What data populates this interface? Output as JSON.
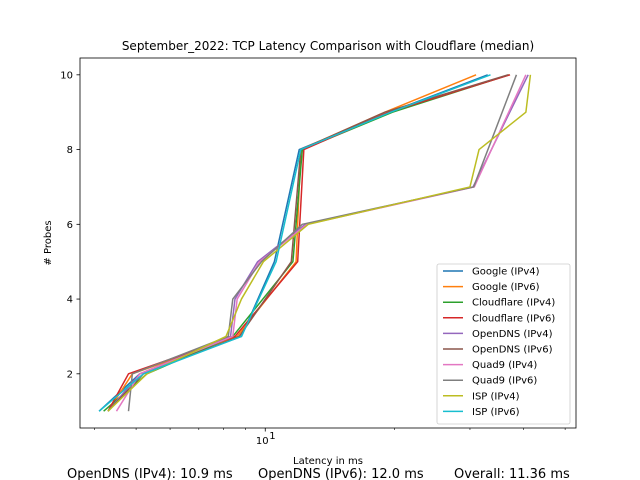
{
  "chart_data": {
    "type": "line",
    "title": "September_2022: TCP Latency Comparison with Cloudflare (median)",
    "xlabel": "Latency in ms",
    "ylabel": "# Probes",
    "xscale": "log",
    "xlim": [
      3.7,
      53
    ],
    "ylim": [
      0.55,
      10.45
    ],
    "xticks": [
      {
        "value": 10,
        "label": "10",
        "exp": "1"
      }
    ],
    "yticks": [
      2,
      4,
      6,
      8,
      10
    ],
    "grid": false,
    "legend_position": "lower-right",
    "series": [
      {
        "name": "Google (IPv4)",
        "color": "#1f77b4",
        "x": [
          4.1,
          5.1,
          8.8,
          10.5,
          12.0,
          19.5,
          33.0
        ],
        "y": [
          1,
          2,
          3,
          5,
          8,
          9,
          10
        ]
      },
      {
        "name": "Google (IPv6)",
        "color": "#ff7f0e",
        "x": [
          4.3,
          4.9,
          8.6,
          11.8,
          12.1,
          19.0,
          31.0
        ],
        "y": [
          1,
          2,
          3,
          5,
          8,
          9,
          10
        ]
      },
      {
        "name": "Cloudflare (IPv4)",
        "color": "#2ca02c",
        "x": [
          4.2,
          5.3,
          8.4,
          11.6,
          12.2,
          19.8,
          37.0
        ],
        "y": [
          1,
          2,
          3,
          5,
          8,
          9,
          10
        ]
      },
      {
        "name": "Cloudflare (IPv6)",
        "color": "#d62728",
        "x": [
          4.3,
          4.8,
          8.5,
          11.9,
          12.3,
          19.4,
          37.2
        ],
        "y": [
          1,
          2,
          3,
          5,
          8,
          9,
          10
        ]
      },
      {
        "name": "OpenDNS (IPv4)",
        "color": "#9467bd",
        "x": [
          4.3,
          5.1,
          8.3,
          8.5,
          9.6,
          12.4,
          30.5,
          41.0
        ],
        "y": [
          1,
          2,
          3,
          4,
          5,
          6,
          7,
          10
        ]
      },
      {
        "name": "OpenDNS (IPv6)",
        "color": "#8c564b",
        "x": [
          4.3,
          5.2,
          8.7,
          11.5,
          12.1,
          19.0,
          36.8
        ],
        "y": [
          1,
          2,
          3,
          5,
          8,
          9,
          10
        ]
      },
      {
        "name": "Quad9 (IPv4)",
        "color": "#e377c2",
        "x": [
          4.5,
          5.1,
          8.4,
          8.6,
          9.7,
          12.5,
          30.7,
          40.5
        ],
        "y": [
          1,
          2,
          3,
          4,
          5,
          6,
          7,
          10
        ]
      },
      {
        "name": "Quad9 (IPv6)",
        "color": "#7f7f7f",
        "x": [
          4.8,
          4.9,
          8.2,
          8.4,
          9.8,
          12.2,
          30.6,
          38.5
        ],
        "y": [
          1,
          2,
          3,
          4,
          5,
          6,
          7,
          10
        ]
      },
      {
        "name": "ISP (IPv4)",
        "color": "#bcbd22",
        "x": [
          4.3,
          5.3,
          8.1,
          8.8,
          9.9,
          12.6,
          30.0,
          31.5,
          40.5,
          41.5
        ],
        "y": [
          1,
          2,
          3,
          4,
          5,
          6,
          7,
          8,
          9,
          10
        ]
      },
      {
        "name": "ISP (IPv6)",
        "color": "#17becf",
        "x": [
          4.1,
          5.2,
          8.8,
          10.6,
          12.1,
          19.6,
          33.5
        ],
        "y": [
          1,
          2,
          3,
          5,
          8,
          9,
          10
        ]
      }
    ]
  },
  "footer": {
    "stat_1": "OpenDNS (IPv4): 10.9 ms",
    "stat_2": "OpenDNS (IPv6): 12.0 ms",
    "stat_3": "Overall: 11.36 ms"
  }
}
